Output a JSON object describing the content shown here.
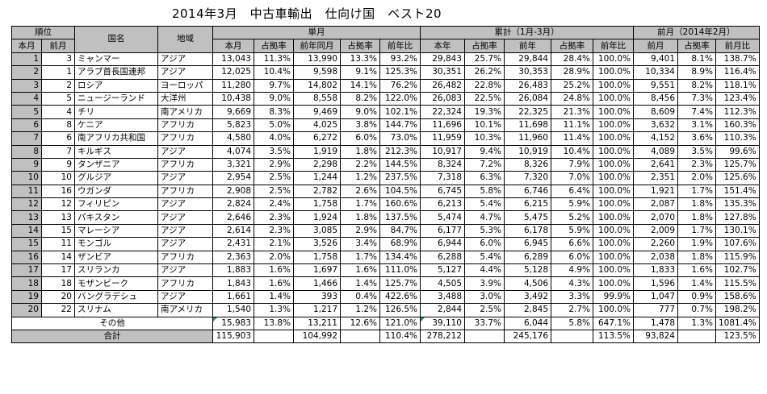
{
  "title": "2014年3月　中古車輸出　仕向け国　ベスト20",
  "header": {
    "rank": "順位",
    "country": "国名",
    "region": "地域",
    "monthly": "単月",
    "cumulative": "累計（1月-3月）",
    "prev_month": "前月（2014年2月）",
    "cur": "本月",
    "prv": "前月",
    "m_cols": [
      "本月",
      "占拠率",
      "前年同月",
      "占拠率",
      "前年比"
    ],
    "c_cols": [
      "本年",
      "占拠率",
      "前年",
      "占拠率",
      "前年比"
    ],
    "p_cols": [
      "前月",
      "占拠率",
      "前月比"
    ]
  },
  "rows": [
    {
      "rank": "1",
      "prev": "3",
      "country": "ミャンマー",
      "region": "アジア",
      "m": [
        "13,043",
        "11.3%",
        "13,990",
        "13.3%",
        "93.2%"
      ],
      "c": [
        "29,843",
        "25.7%",
        "29,844",
        "28.4%",
        "100.0%"
      ],
      "p": [
        "9,401",
        "8.1%",
        "138.7%"
      ]
    },
    {
      "rank": "2",
      "prev": "1",
      "country": "アラブ首長国連邦",
      "region": "アジア",
      "m": [
        "12,025",
        "10.4%",
        "9,598",
        "9.1%",
        "125.3%"
      ],
      "c": [
        "30,351",
        "26.2%",
        "30,353",
        "28.9%",
        "100.0%"
      ],
      "p": [
        "10,334",
        "8.9%",
        "116.4%"
      ]
    },
    {
      "rank": "3",
      "prev": "2",
      "country": "ロシア",
      "region": "ヨーロッパ",
      "m": [
        "11,280",
        "9.7%",
        "14,802",
        "14.1%",
        "76.2%"
      ],
      "c": [
        "26,482",
        "22.8%",
        "26,483",
        "25.2%",
        "100.0%"
      ],
      "p": [
        "9,551",
        "8.2%",
        "118.1%"
      ]
    },
    {
      "rank": "4",
      "prev": "5",
      "country": "ニュージーランド",
      "region": "大洋州",
      "m": [
        "10,438",
        "9.0%",
        "8,558",
        "8.2%",
        "122.0%"
      ],
      "c": [
        "26,083",
        "22.5%",
        "26,084",
        "24.8%",
        "100.0%"
      ],
      "p": [
        "8,456",
        "7.3%",
        "123.4%"
      ]
    },
    {
      "rank": "5",
      "prev": "4",
      "country": "チリ",
      "region": "南アメリカ",
      "m": [
        "9,669",
        "8.3%",
        "9,469",
        "9.0%",
        "102.1%"
      ],
      "c": [
        "22,324",
        "19.3%",
        "22,325",
        "21.3%",
        "100.0%"
      ],
      "p": [
        "8,609",
        "7.4%",
        "112.3%"
      ]
    },
    {
      "rank": "6",
      "prev": "8",
      "country": "ケニア",
      "region": "アフリカ",
      "m": [
        "5,823",
        "5.0%",
        "4,025",
        "3.8%",
        "144.7%"
      ],
      "c": [
        "11,696",
        "10.1%",
        "11,698",
        "11.1%",
        "100.0%"
      ],
      "p": [
        "3,632",
        "3.1%",
        "160.3%"
      ]
    },
    {
      "rank": "7",
      "prev": "6",
      "country": "南アフリカ共和国",
      "region": "アフリカ",
      "m": [
        "4,580",
        "4.0%",
        "6,272",
        "6.0%",
        "73.0%"
      ],
      "c": [
        "11,959",
        "10.3%",
        "11,960",
        "11.4%",
        "100.0%"
      ],
      "p": [
        "4,152",
        "3.6%",
        "110.3%"
      ]
    },
    {
      "rank": "8",
      "prev": "7",
      "country": "キルギス",
      "region": "アジア",
      "m": [
        "4,074",
        "3.5%",
        "1,919",
        "1.8%",
        "212.3%"
      ],
      "c": [
        "10,917",
        "9.4%",
        "10,919",
        "10.4%",
        "100.0%"
      ],
      "p": [
        "4,089",
        "3.5%",
        "99.6%"
      ]
    },
    {
      "rank": "9",
      "prev": "9",
      "country": "タンザニア",
      "region": "アフリカ",
      "m": [
        "3,321",
        "2.9%",
        "2,298",
        "2.2%",
        "144.5%"
      ],
      "c": [
        "8,324",
        "7.2%",
        "8,326",
        "7.9%",
        "100.0%"
      ],
      "p": [
        "2,641",
        "2.3%",
        "125.7%"
      ]
    },
    {
      "rank": "10",
      "prev": "10",
      "country": "グルジア",
      "region": "アジア",
      "m": [
        "2,954",
        "2.5%",
        "1,244",
        "1.2%",
        "237.5%"
      ],
      "c": [
        "7,318",
        "6.3%",
        "7,320",
        "7.0%",
        "100.0%"
      ],
      "p": [
        "2,351",
        "2.0%",
        "125.6%"
      ]
    },
    {
      "rank": "11",
      "prev": "16",
      "country": "ウガンダ",
      "region": "アフリカ",
      "m": [
        "2,908",
        "2.5%",
        "2,782",
        "2.6%",
        "104.5%"
      ],
      "c": [
        "6,745",
        "5.8%",
        "6,746",
        "6.4%",
        "100.0%"
      ],
      "p": [
        "1,921",
        "1.7%",
        "151.4%"
      ]
    },
    {
      "rank": "12",
      "prev": "12",
      "country": "フィリピン",
      "region": "アジア",
      "m": [
        "2,824",
        "2.4%",
        "1,758",
        "1.7%",
        "160.6%"
      ],
      "c": [
        "6,213",
        "5.4%",
        "6,215",
        "5.9%",
        "100.0%"
      ],
      "p": [
        "2,087",
        "1.8%",
        "135.3%"
      ]
    },
    {
      "rank": "13",
      "prev": "13",
      "country": "パキスタン",
      "region": "アジア",
      "m": [
        "2,646",
        "2.3%",
        "1,924",
        "1.8%",
        "137.5%"
      ],
      "c": [
        "5,474",
        "4.7%",
        "5,475",
        "5.2%",
        "100.0%"
      ],
      "p": [
        "2,070",
        "1.8%",
        "127.8%"
      ]
    },
    {
      "rank": "14",
      "prev": "15",
      "country": "マレーシア",
      "region": "アジア",
      "m": [
        "2,614",
        "2.3%",
        "3,085",
        "2.9%",
        "84.7%"
      ],
      "c": [
        "6,177",
        "5.3%",
        "6,178",
        "5.9%",
        "100.0%"
      ],
      "p": [
        "2,009",
        "1.7%",
        "130.1%"
      ]
    },
    {
      "rank": "15",
      "prev": "11",
      "country": "モンゴル",
      "region": "アジア",
      "m": [
        "2,431",
        "2.1%",
        "3,526",
        "3.4%",
        "68.9%"
      ],
      "c": [
        "6,944",
        "6.0%",
        "6,945",
        "6.6%",
        "100.0%"
      ],
      "p": [
        "2,260",
        "1.9%",
        "107.6%"
      ]
    },
    {
      "rank": "16",
      "prev": "14",
      "country": "ザンビア",
      "region": "アフリカ",
      "m": [
        "2,363",
        "2.0%",
        "1,758",
        "1.7%",
        "134.4%"
      ],
      "c": [
        "6,288",
        "5.4%",
        "6,289",
        "6.0%",
        "100.0%"
      ],
      "p": [
        "2,038",
        "1.8%",
        "115.9%"
      ]
    },
    {
      "rank": "17",
      "prev": "17",
      "country": "スリランカ",
      "region": "アジア",
      "m": [
        "1,883",
        "1.6%",
        "1,697",
        "1.6%",
        "111.0%"
      ],
      "c": [
        "5,127",
        "4.4%",
        "5,128",
        "4.9%",
        "100.0%"
      ],
      "p": [
        "1,833",
        "1.6%",
        "102.7%"
      ]
    },
    {
      "rank": "18",
      "prev": "18",
      "country": "モザンビーク",
      "region": "アフリカ",
      "m": [
        "1,843",
        "1.6%",
        "1,466",
        "1.4%",
        "125.7%"
      ],
      "c": [
        "4,505",
        "3.9%",
        "4,506",
        "4.3%",
        "100.0%"
      ],
      "p": [
        "1,596",
        "1.4%",
        "115.5%"
      ]
    },
    {
      "rank": "19",
      "prev": "20",
      "country": "バングラデシュ",
      "region": "アジア",
      "m": [
        "1,661",
        "1.4%",
        "393",
        "0.4%",
        "422.6%"
      ],
      "c": [
        "3,488",
        "3.0%",
        "3,492",
        "3.3%",
        "99.9%"
      ],
      "p": [
        "1,047",
        "0.9%",
        "158.6%"
      ]
    },
    {
      "rank": "20",
      "prev": "22",
      "country": "スリナム",
      "region": "南アメリカ",
      "m": [
        "1,540",
        "1.3%",
        "1,217",
        "1.2%",
        "126.5%"
      ],
      "c": [
        "2,844",
        "2.5%",
        "2,845",
        "2.7%",
        "100.0%"
      ],
      "p": [
        "777",
        "0.7%",
        "198.2%"
      ]
    }
  ],
  "others": {
    "label": "その他",
    "m": [
      "15,983",
      "13.8%",
      "13,211",
      "12.6%",
      "121.0%"
    ],
    "c": [
      "39,110",
      "33.7%",
      "6,044",
      "5.8%",
      "647.1%"
    ],
    "p": [
      "1,478",
      "1.3%",
      "1081.4%"
    ]
  },
  "total": {
    "label": "合計",
    "m": [
      "115,903",
      "",
      "104,992",
      "",
      "110.4%"
    ],
    "c": [
      "278,212",
      "",
      "245,176",
      "",
      "113.5%"
    ],
    "p": [
      "93,824",
      "",
      "123.5%"
    ]
  }
}
